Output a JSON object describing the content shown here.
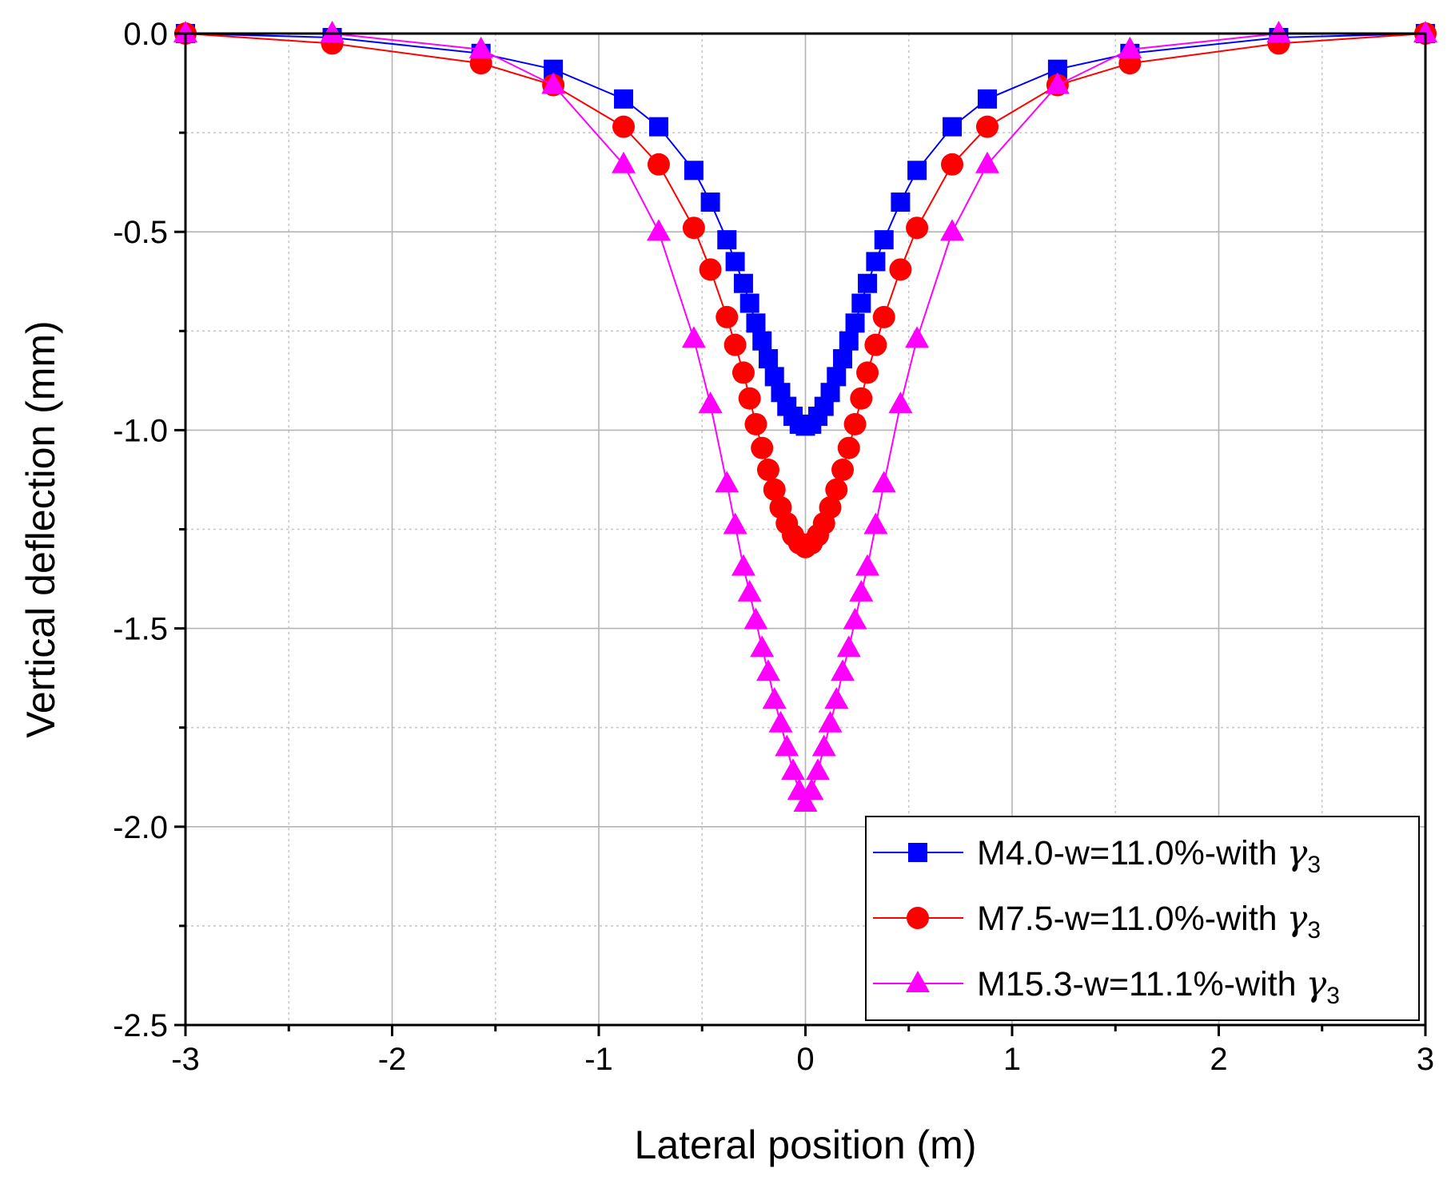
{
  "chart_data": {
    "type": "line",
    "title": "",
    "xlabel": "Lateral position (m)",
    "ylabel": "Vertical deflection (mm)",
    "xlim": [
      -3,
      3
    ],
    "ylim": [
      -2.5,
      0
    ],
    "grid": true,
    "legend_position": "bottom-right",
    "x_ticks": [
      "-3",
      "-2",
      "-1",
      "0",
      "1",
      "2",
      "3"
    ],
    "y_ticks": [
      "0.0",
      "-0.5",
      "-1.0",
      "-1.5",
      "-2.0",
      "-2.5"
    ],
    "series": [
      {
        "name": "M4.0-w=11.0%-with",
        "subscript_symbol": "γ",
        "subscript": "3",
        "color": "#0000ff",
        "marker": "square",
        "x": [
          -3,
          -2.29,
          -1.57,
          -1.22,
          -0.88,
          -0.71,
          -0.54,
          -0.46,
          -0.38,
          -0.34,
          -0.3,
          -0.27,
          -0.24,
          -0.21,
          -0.18,
          -0.15,
          -0.12,
          -0.09,
          -0.06,
          -0.03,
          0,
          0.03,
          0.06,
          0.09,
          0.12,
          0.15,
          0.18,
          0.21,
          0.24,
          0.27,
          0.3,
          0.34,
          0.38,
          0.46,
          0.54,
          0.71,
          0.88,
          1.22,
          1.57,
          2.29,
          3
        ],
        "y": [
          0,
          -0.01,
          -0.05,
          -0.09,
          -0.165,
          -0.235,
          -0.345,
          -0.425,
          -0.52,
          -0.575,
          -0.63,
          -0.68,
          -0.73,
          -0.775,
          -0.82,
          -0.865,
          -0.905,
          -0.94,
          -0.965,
          -0.985,
          -0.99,
          -0.985,
          -0.965,
          -0.94,
          -0.905,
          -0.865,
          -0.82,
          -0.775,
          -0.73,
          -0.68,
          -0.63,
          -0.575,
          -0.52,
          -0.425,
          -0.345,
          -0.235,
          -0.165,
          -0.09,
          -0.05,
          -0.01,
          0
        ]
      },
      {
        "name": "M7.5-w=11.0%-with",
        "subscript_symbol": "γ",
        "subscript": "3",
        "color": "#ff0000",
        "marker": "circle",
        "x": [
          -3,
          -2.29,
          -1.57,
          -1.22,
          -0.88,
          -0.71,
          -0.54,
          -0.46,
          -0.38,
          -0.34,
          -0.3,
          -0.27,
          -0.24,
          -0.21,
          -0.18,
          -0.15,
          -0.12,
          -0.09,
          -0.06,
          -0.03,
          0,
          0.03,
          0.06,
          0.09,
          0.12,
          0.15,
          0.18,
          0.21,
          0.24,
          0.27,
          0.3,
          0.34,
          0.38,
          0.46,
          0.54,
          0.71,
          0.88,
          1.22,
          1.57,
          2.29,
          3
        ],
        "y": [
          0,
          -0.025,
          -0.075,
          -0.13,
          -0.235,
          -0.33,
          -0.49,
          -0.595,
          -0.715,
          -0.785,
          -0.855,
          -0.92,
          -0.985,
          -1.045,
          -1.1,
          -1.15,
          -1.195,
          -1.235,
          -1.265,
          -1.285,
          -1.295,
          -1.285,
          -1.265,
          -1.235,
          -1.195,
          -1.15,
          -1.1,
          -1.045,
          -0.985,
          -0.92,
          -0.855,
          -0.785,
          -0.715,
          -0.595,
          -0.49,
          -0.33,
          -0.235,
          -0.13,
          -0.075,
          -0.025,
          0
        ]
      },
      {
        "name": "M15.3-w=11.1%-with",
        "subscript_symbol": "γ",
        "subscript": "3",
        "color": "#ff00ff",
        "marker": "triangle",
        "x": [
          -3,
          -2.29,
          -1.57,
          -1.22,
          -0.88,
          -0.71,
          -0.54,
          -0.46,
          -0.38,
          -0.34,
          -0.3,
          -0.27,
          -0.24,
          -0.21,
          -0.18,
          -0.15,
          -0.12,
          -0.09,
          -0.06,
          -0.03,
          0,
          0.03,
          0.06,
          0.09,
          0.12,
          0.15,
          0.18,
          0.21,
          0.24,
          0.27,
          0.3,
          0.34,
          0.38,
          0.46,
          0.54,
          0.71,
          0.88,
          1.22,
          1.57,
          2.29,
          3
        ],
        "y": [
          0,
          0,
          -0.04,
          -0.13,
          -0.33,
          -0.5,
          -0.77,
          -0.935,
          -1.135,
          -1.24,
          -1.345,
          -1.41,
          -1.48,
          -1.55,
          -1.61,
          -1.68,
          -1.74,
          -1.8,
          -1.86,
          -1.91,
          -1.94,
          -1.91,
          -1.86,
          -1.8,
          -1.74,
          -1.68,
          -1.61,
          -1.55,
          -1.48,
          -1.41,
          -1.345,
          -1.24,
          -1.135,
          -0.935,
          -0.77,
          -0.5,
          -0.33,
          -0.13,
          -0.04,
          0,
          0
        ]
      }
    ]
  }
}
